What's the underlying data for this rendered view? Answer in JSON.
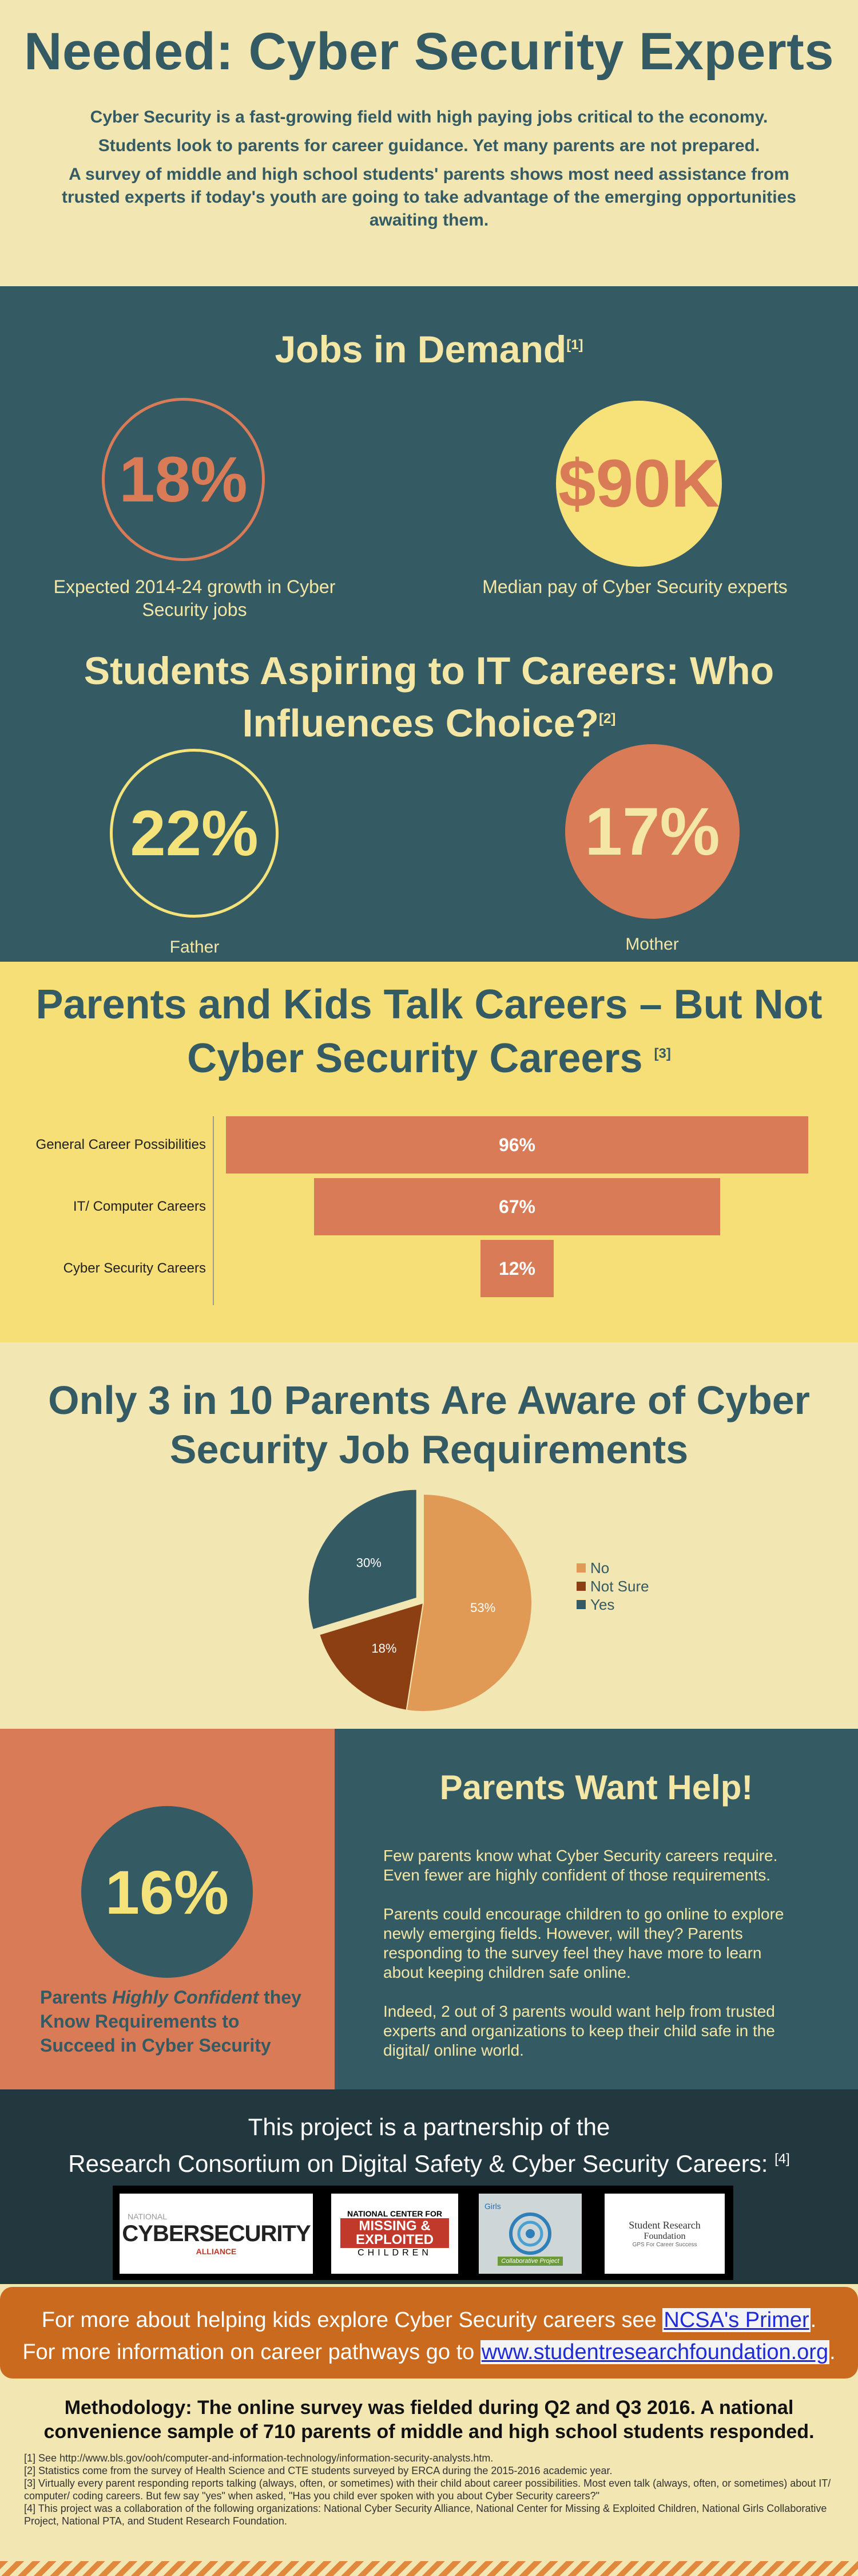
{
  "header": {
    "title": "Needed: Cyber Security Experts",
    "intro": [
      "Cyber Security is a fast-growing field with high paying jobs critical to the economy.",
      "Students look to parents for career guidance. Yet many parents are not prepared.",
      "A survey of middle and high school students' parents shows most need assistance from trusted experts if today's youth are going to take advantage of the emerging opportunities awaiting them."
    ]
  },
  "jobs": {
    "title": "Jobs in Demand",
    "ref": "[1]",
    "stat1": {
      "value": "18%",
      "caption": "Expected 2014-24 growth in Cyber Security jobs"
    },
    "stat2": {
      "value": "$90K",
      "caption": "Median pay of Cyber Security experts"
    }
  },
  "aspire": {
    "title": "Students Aspiring to IT Careers: Who Influences Choice?",
    "ref": "[2]",
    "father": {
      "value": "22%",
      "caption": "Father"
    },
    "mother": {
      "value": "17%",
      "caption": "Mother"
    }
  },
  "talk": {
    "title": "Parents and Kids Talk Careers – But Not Cyber Security Careers",
    "ref": "[3]"
  },
  "pie_section": {
    "title": "Only 3 in 10 Parents Are Aware of Cyber Security Job Requirements"
  },
  "chart_data": [
    {
      "type": "bar",
      "orientation": "horizontal",
      "categories": [
        "General Career Possibilities",
        "IT/ Computer Careers",
        "Cyber Security Careers"
      ],
      "values": [
        96,
        67,
        12
      ],
      "value_labels": [
        "96%",
        "67%",
        "12%"
      ],
      "color": "#d97b57"
    },
    {
      "type": "pie",
      "labels": [
        "No",
        "Not Sure",
        "Yes"
      ],
      "values": [
        53,
        18,
        30
      ],
      "value_labels": [
        "53%",
        "18%",
        "30%"
      ],
      "colors": [
        "#e19a55",
        "#8b3f12",
        "#345a63"
      ],
      "legend": "right"
    }
  ],
  "help": {
    "stat": "16%",
    "caption_pre": "Parents ",
    "caption_em": "Highly Confident",
    "caption_post": " they Know Requirements to Succeed in Cyber Security",
    "title": "Parents Want Help!",
    "paragraphs": [
      "Few parents know what Cyber Security careers require. Even fewer are highly confident of those requirements.",
      "Parents could encourage children to go online to explore newly emerging  fields. However, will they? Parents responding to the survey feel they have more to learn about keeping children safe online.",
      "Indeed, 2 out of 3 parents would want help from trusted experts and organizations to keep their child safe in the digital/ online world."
    ]
  },
  "partner": {
    "line1": "This project is a partnership of the",
    "line2": "Research Consortium on Digital Safety & Cyber Security Careers:",
    "ref": "[4]",
    "logos": {
      "ncsa": {
        "small": "NATIONAL",
        "big": "CYBERSECURITY",
        "sub": "ALLIANCE"
      },
      "ncmec": {
        "top": "NATIONAL CENTER FOR",
        "mid": "MISSING & EXPLOITED",
        "bottom": "CHILDREN"
      },
      "ngcp": {
        "top": "Girls",
        "bottom": "Collaborative Project"
      },
      "srf": {
        "top": "Student Research",
        "mid": "Foundation",
        "bottom": "GPS For Career Success"
      }
    }
  },
  "banner": {
    "line1_pre": "For more about helping kids explore Cyber Security careers see ",
    "line1_link": "NCSA's Primer",
    "line1_post": ".",
    "line2_pre": "For more information on career pathways go to ",
    "line2_link": "www.studentresearchfoundation.org",
    "line2_post": "."
  },
  "method": {
    "title": "Methodology: The online survey was fielded during Q2 and Q3 2016. A national convenience sample of 710 parents of middle and high school students responded.",
    "notes": [
      "[1] See http://www.bls.gov/ooh/computer-and-information-technology/information-security-analysts.htm.",
      "[2] Statistics come from the survey of Health Science and CTE students surveyed by ERCA during the 2015-2016 academic year.",
      "[3] Virtually every parent responding reports talking (always, often, or sometimes) with their child about career possibilities. Most even talk (always, often, or sometimes) about IT/ computer/ coding careers. But few say \"yes\" when asked, \"Has you child ever spoken with you about Cyber Security careers?\"",
      "[4] This project was a collaboration of the following organizations: National Cyber Security Alliance, National Center for Missing & Exploited Children, National Girls Collaborative Project, National PTA, and Student Research Foundation."
    ]
  }
}
